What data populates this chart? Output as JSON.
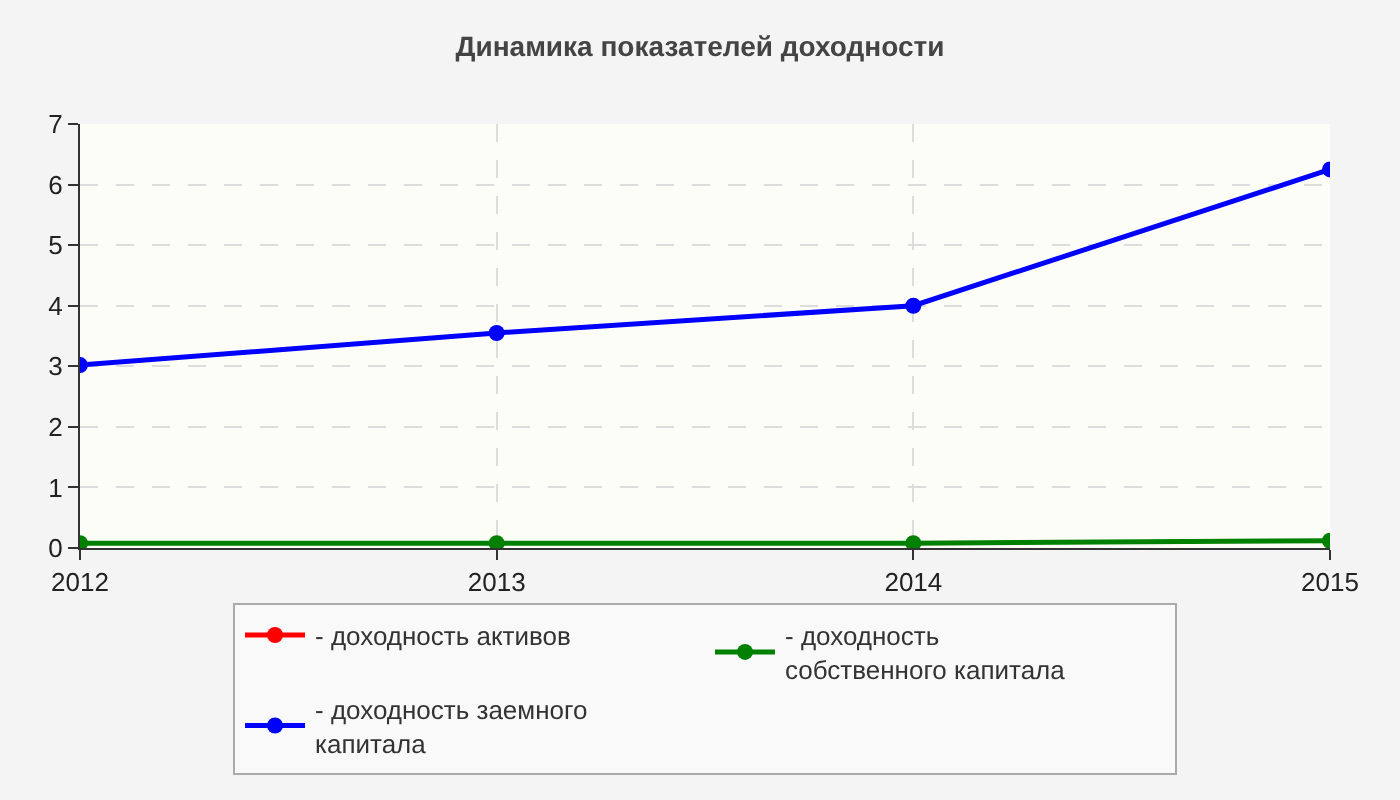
{
  "chart_data": {
    "type": "line",
    "title": "Динамика показателей доходности",
    "x": [
      2012,
      2013,
      2014,
      2015
    ],
    "series": [
      {
        "name": "- доходность активов",
        "color": "#ff0000",
        "values": [
          null,
          null,
          null,
          null
        ]
      },
      {
        "name": "- доходность собственного капитала",
        "color": "#008000",
        "values": [
          0.08,
          0.08,
          0.08,
          0.12
        ]
      },
      {
        "name": "- доходность заемного капитала",
        "color": "#0000ff",
        "values": [
          3.02,
          3.55,
          4.0,
          6.25
        ]
      }
    ],
    "xlim": [
      2012,
      2015
    ],
    "xticks": [
      2012,
      2013,
      2014,
      2015
    ],
    "ylim": [
      0,
      7
    ],
    "yticks": [
      0,
      1,
      2,
      3,
      4,
      5,
      6,
      7
    ],
    "grid": true,
    "legend": "bottom",
    "marker": "circle",
    "line_style": "solid"
  }
}
